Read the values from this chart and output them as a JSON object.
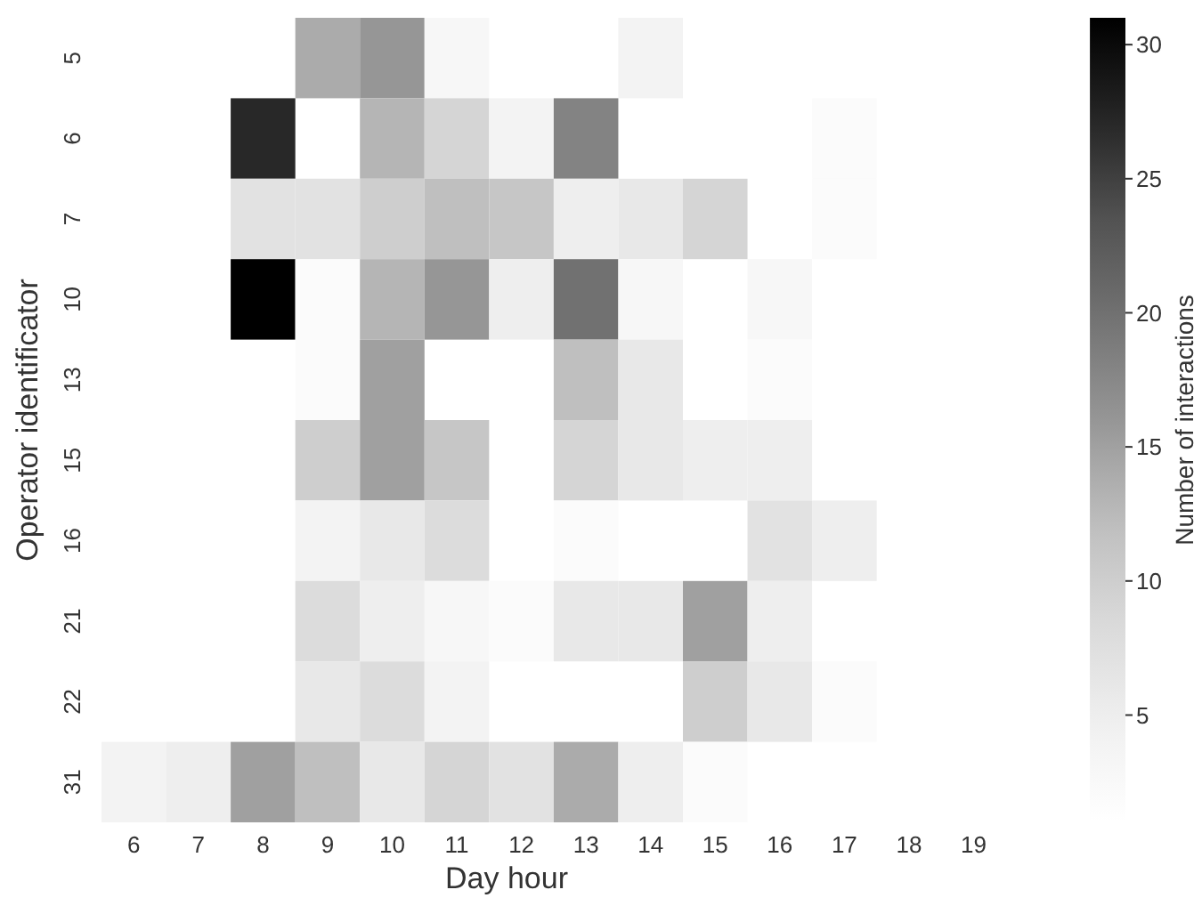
{
  "chart_data": {
    "type": "heatmap",
    "xlabel": "Day hour",
    "ylabel": "Operator identificator",
    "clabel": "Number of interactions",
    "categories": [
      "6",
      "7",
      "8",
      "9",
      "10",
      "11",
      "12",
      "13",
      "14",
      "15",
      "16",
      "17",
      "18",
      "19"
    ],
    "y_categories": [
      "5",
      "6",
      "7",
      "10",
      "13",
      "15",
      "16",
      "21",
      "22",
      "31"
    ],
    "cells": [
      [
        null,
        null,
        null,
        14,
        16,
        3,
        null,
        null,
        4,
        null,
        null,
        null,
        null,
        null
      ],
      [
        null,
        null,
        27,
        null,
        13,
        9,
        4,
        18,
        null,
        null,
        null,
        2,
        null,
        null
      ],
      [
        null,
        null,
        7,
        7,
        10,
        12,
        11,
        5,
        6,
        9,
        null,
        2,
        null,
        null
      ],
      [
        null,
        null,
        31,
        2,
        13,
        16,
        5,
        20,
        3,
        null,
        3,
        null,
        null,
        null
      ],
      [
        null,
        null,
        null,
        2,
        15,
        null,
        null,
        12,
        6,
        null,
        2,
        null,
        null,
        null
      ],
      [
        null,
        null,
        null,
        10,
        15,
        11,
        null,
        9,
        6,
        5,
        5,
        null,
        null,
        null
      ],
      [
        null,
        null,
        null,
        4,
        6,
        8,
        null,
        2,
        null,
        null,
        7,
        5,
        null,
        null
      ],
      [
        null,
        null,
        null,
        8,
        5,
        3,
        2,
        6,
        6,
        15,
        5,
        null,
        null,
        null
      ],
      [
        null,
        null,
        null,
        6,
        8,
        4,
        null,
        null,
        null,
        10,
        6,
        2,
        null,
        null
      ],
      [
        4,
        5,
        15,
        12,
        6,
        9,
        7,
        14,
        5,
        2,
        null,
        null,
        null,
        null
      ]
    ],
    "clim": [
      1,
      31
    ],
    "cticks": [
      5,
      10,
      15,
      20,
      25,
      30
    ]
  }
}
